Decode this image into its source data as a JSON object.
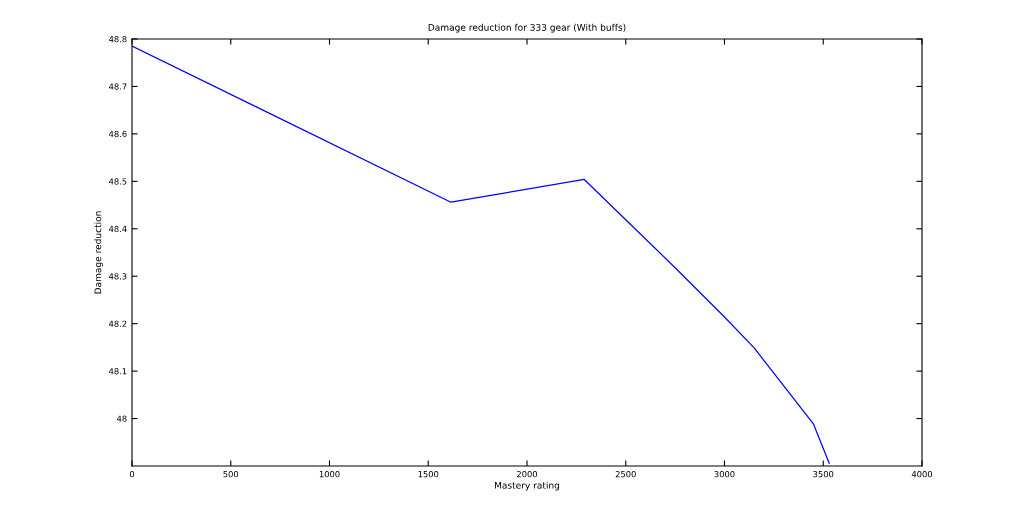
{
  "chart_data": {
    "type": "line",
    "title": "Damage reduction for 333 gear (With buffs)",
    "xlabel": "Mastery rating",
    "ylabel": "Damage reduction",
    "series": [
      {
        "color": "#0000ff",
        "x": [
          0,
          1615,
          2290,
          2500,
          2750,
          3000,
          3150,
          3300,
          3450,
          3530
        ],
        "values": [
          48.785,
          48.456,
          48.504,
          48.419,
          48.318,
          48.214,
          48.149,
          48.069,
          47.989,
          47.906
        ]
      }
    ],
    "xlim": [
      0,
      4000
    ],
    "xticks": [
      0,
      500,
      1000,
      1500,
      2000,
      2500,
      3000,
      3500,
      4000
    ],
    "ylim": [
      47.9,
      48.8
    ],
    "yticks": [
      48,
      48.1,
      48.2,
      48.3,
      48.4,
      48.5,
      48.6,
      48.7,
      48.8
    ],
    "grid": false,
    "legend": false,
    "marker": "none",
    "line_style": "solid"
  }
}
